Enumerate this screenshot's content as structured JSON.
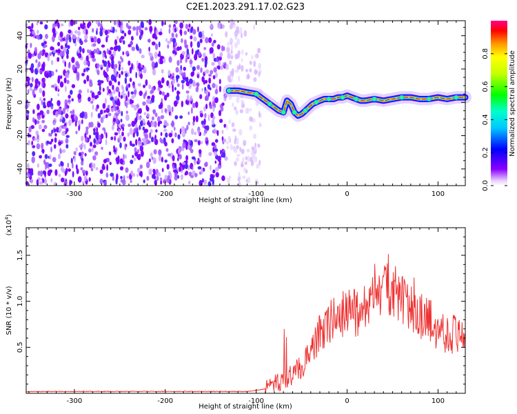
{
  "figure": {
    "title": "C2E1.2023.291.17.02.G23",
    "colors": {
      "speckle": "#7a00ff",
      "track_core": "#ff0000",
      "snr_line": "#ee3333",
      "axis": "#000000"
    }
  },
  "chart_data": [
    {
      "id": "spectrogram",
      "type": "heatmap",
      "xlabel": "Height of straight line (km)",
      "ylabel": "Frequency (Hz)",
      "xlim": [
        -353,
        130
      ],
      "ylim": [
        -50,
        49
      ],
      "xticks": [
        -300,
        -200,
        -100,
        0,
        100
      ],
      "yticks": [
        -40,
        -20,
        0,
        20,
        40
      ],
      "xtick_labels": [
        "-300",
        "-200",
        "-100",
        "0",
        "100"
      ],
      "ytick_labels": [
        "-40",
        "-20",
        "0",
        "20",
        "40"
      ],
      "noise_region_x": [
        -353,
        -95
      ],
      "noise_dense_edge_x": -133,
      "track": {
        "x": [
          -130,
          -120,
          -110,
          -100,
          -95,
          -90,
          -85,
          -80,
          -75,
          -70,
          -66,
          -62,
          -58,
          -54,
          -50,
          -46,
          -42,
          -38,
          -34,
          -30,
          -25,
          -20,
          -15,
          -10,
          -5,
          0,
          5,
          10,
          15,
          20,
          30,
          40,
          50,
          60,
          70,
          80,
          90,
          100,
          110,
          120,
          130
        ],
        "y": [
          7,
          7,
          6,
          5,
          3,
          1,
          -1,
          -3,
          -5,
          -6,
          1,
          -1,
          -6,
          -8,
          -7,
          -5,
          -3,
          -1,
          0,
          1,
          2,
          2,
          2,
          3,
          3,
          4,
          3,
          2,
          1,
          1,
          2,
          1,
          2,
          3,
          3,
          2,
          2,
          3,
          2,
          3,
          3
        ]
      },
      "colorbar": {
        "label": "Normalized spectral amplitude",
        "range": [
          0.0,
          1.0
        ],
        "ticks": [
          0.0,
          0.2,
          0.4,
          0.6,
          0.8
        ],
        "tick_labels": [
          "0.0",
          "0.2",
          "0.4",
          "0.6",
          "0.8"
        ]
      }
    },
    {
      "id": "snr",
      "type": "line",
      "xlabel": "Height of straight line (km)",
      "ylabel": "SNR (10 * v/v)",
      "y_multiplier": "(x10",
      "y_multiplier_exp": "4",
      "y_multiplier_close": ")",
      "xlim": [
        -353,
        130
      ],
      "ylim": [
        0,
        1.8
      ],
      "xticks": [
        -300,
        -200,
        -100,
        0,
        100
      ],
      "yticks": [
        0.5,
        1.0,
        1.5
      ],
      "xtick_labels": [
        "-300",
        "-200",
        "-100",
        "0",
        "100"
      ],
      "ytick_labels": [
        "0.5",
        "1.0",
        "1.5"
      ],
      "series": [
        {
          "x": [
            -353,
            -300,
            -250,
            -200,
            -150,
            -110,
            -100,
            -90,
            -80,
            -70,
            -60,
            -55,
            -50,
            -45,
            -40,
            -35,
            -30,
            -25,
            -20,
            -15,
            -10,
            -5,
            0,
            5,
            10,
            15,
            20,
            25,
            30,
            35,
            40,
            45,
            50,
            55,
            60,
            65,
            70,
            75,
            80,
            85,
            90,
            95,
            100,
            110,
            120,
            130
          ],
          "y": [
            0.02,
            0.02,
            0.02,
            0.02,
            0.02,
            0.02,
            0.03,
            0.05,
            0.1,
            0.15,
            0.2,
            0.25,
            0.3,
            0.35,
            0.4,
            0.55,
            0.65,
            0.7,
            0.75,
            0.85,
            0.8,
            0.85,
            0.9,
            0.95,
            0.85,
            0.9,
            0.95,
            1.0,
            0.95,
            1.05,
            1.1,
            1.2,
            1.15,
            1.05,
            1.0,
            0.95,
            0.9,
            0.9,
            0.85,
            0.8,
            0.8,
            0.75,
            0.7,
            0.65,
            0.65,
            0.65
          ]
        }
      ]
    }
  ]
}
